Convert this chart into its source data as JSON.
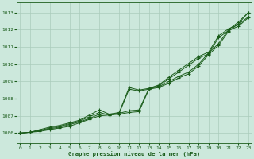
{
  "title": "Graphe pression niveau de la mer (hPa)",
  "bg_color": "#cce8dc",
  "grid_color": "#aaccbb",
  "line_color": "#1a5c1a",
  "marker_color": "#1a5c1a",
  "x_ticks": [
    0,
    1,
    2,
    3,
    4,
    5,
    6,
    7,
    8,
    9,
    10,
    11,
    12,
    13,
    14,
    15,
    16,
    17,
    18,
    19,
    20,
    21,
    22,
    23
  ],
  "y_ticks": [
    1006,
    1007,
    1008,
    1009,
    1010,
    1011,
    1012,
    1013
  ],
  "ylim": [
    1005.4,
    1013.6
  ],
  "xlim": [
    -0.3,
    23.3
  ],
  "line1": [
    1006.0,
    1006.05,
    1006.1,
    1006.2,
    1006.3,
    1006.4,
    1006.6,
    1006.8,
    1007.0,
    1007.05,
    1007.1,
    1007.2,
    1007.25,
    1008.55,
    1008.65,
    1008.9,
    1009.2,
    1009.45,
    1009.9,
    1010.55,
    1011.1,
    1011.9,
    1012.35,
    1013.0
  ],
  "line2": [
    1006.0,
    1006.05,
    1006.15,
    1006.25,
    1006.35,
    1006.5,
    1006.65,
    1006.85,
    1007.1,
    1007.1,
    1007.15,
    1007.3,
    1007.35,
    1008.6,
    1008.7,
    1009.0,
    1009.3,
    1009.55,
    1010.0,
    1010.65,
    1011.2,
    1012.0,
    1012.45,
    1013.0
  ],
  "line3": [
    1006.0,
    1006.05,
    1006.15,
    1006.3,
    1006.4,
    1006.55,
    1006.7,
    1006.95,
    1007.2,
    1007.05,
    1007.15,
    1008.55,
    1008.45,
    1008.55,
    1008.75,
    1009.15,
    1009.55,
    1009.95,
    1010.35,
    1010.6,
    1011.55,
    1011.95,
    1012.2,
    1012.7
  ],
  "line4": [
    1006.0,
    1006.05,
    1006.2,
    1006.35,
    1006.45,
    1006.6,
    1006.75,
    1007.05,
    1007.35,
    1007.1,
    1007.2,
    1008.65,
    1008.5,
    1008.6,
    1008.8,
    1009.25,
    1009.65,
    1010.05,
    1010.45,
    1010.7,
    1011.65,
    1012.05,
    1012.3,
    1012.75
  ]
}
